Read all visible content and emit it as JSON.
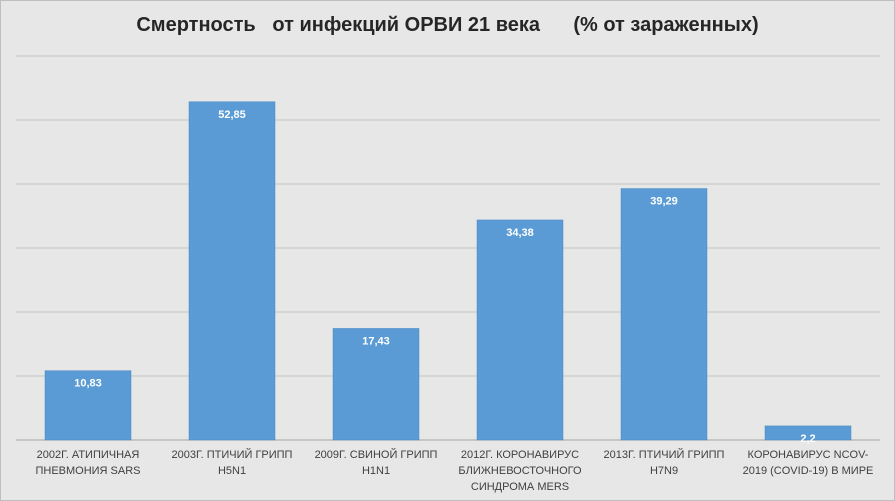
{
  "chart_data": {
    "type": "bar",
    "title": "Смертность   от инфекций ОРВИ 21 века      (% от зараженных)",
    "categories": [
      "2002г. Атипичная пневмония SARS",
      "2003г. Птичий грипп H5N1",
      "2009г. Свиной грипп H1N1",
      "2012г. Коронавирус ближневосточного синдрома MERS",
      "2013г. Птичий грипп H7N9",
      "Коронавирус nCoV-2019 (COVID-19) в мире"
    ],
    "value_labels": [
      "10,83",
      "52,85",
      "17,43",
      "34,38",
      "39,29",
      "2,2"
    ],
    "values": [
      10.83,
      52.85,
      17.43,
      34.38,
      39.29,
      2.2
    ],
    "ylim": [
      0,
      60
    ],
    "grid": true,
    "bar_color": "#5b9bd5",
    "background_color": "#e7e7e7"
  }
}
